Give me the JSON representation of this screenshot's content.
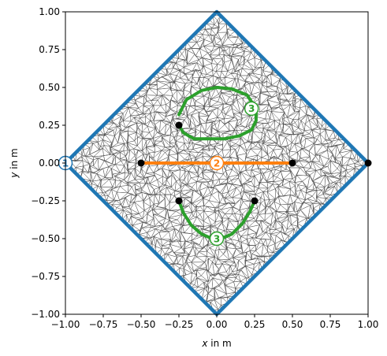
{
  "chart_data": {
    "type": "scatter",
    "title": "",
    "xlabel": "x in m",
    "ylabel": "y in m",
    "xlabel_parts": [
      "x",
      " in m"
    ],
    "ylabel_parts": [
      "y",
      " in m"
    ],
    "xlim": [
      -1.0,
      1.0
    ],
    "ylim": [
      -1.0,
      1.0
    ],
    "grid": false,
    "x_ticks": [
      -1.0,
      -0.75,
      -0.5,
      -0.25,
      0.0,
      0.25,
      0.5,
      0.75,
      1.0
    ],
    "y_ticks": [
      -1.0,
      -0.75,
      -0.5,
      -0.25,
      0.0,
      0.25,
      0.5,
      0.75,
      1.0
    ],
    "x_tick_labels": [
      "−1.00",
      "−0.75",
      "−0.50",
      "−0.25",
      "0.00",
      "0.25",
      "0.50",
      "0.75",
      "1.00"
    ],
    "y_tick_labels": [
      "−1.00",
      "−0.75",
      "−0.50",
      "−0.25",
      "0.00",
      "0.25",
      "0.50",
      "0.75",
      "1.00"
    ],
    "colors": {
      "boundary_1": "#1f77b4",
      "boundary_2": "#ff7f0e",
      "boundary_3": "#2ca02c",
      "mesh": "#555555",
      "points": "#000000"
    },
    "series": [
      {
        "name": "1",
        "label": "1",
        "label_at": [
          -1.0,
          0.0
        ],
        "color": "#1f77b4",
        "x": [
          0.0,
          1.0,
          0.0,
          -1.0,
          0.0
        ],
        "y": [
          1.0,
          0.0,
          -1.0,
          0.0,
          1.0
        ]
      },
      {
        "name": "2",
        "label": "2",
        "label_at": [
          0.0,
          0.0
        ],
        "color": "#ff7f0e",
        "x": [
          -0.5,
          0.5
        ],
        "y": [
          0.0,
          0.0
        ]
      },
      {
        "name": "3",
        "label": "3",
        "label_at": [
          0.23,
          0.36
        ],
        "color": "#2ca02c",
        "x": [
          -0.25,
          -0.22,
          -0.15,
          -0.05,
          0.05,
          0.15,
          0.23,
          0.26,
          0.26,
          0.2,
          0.1,
          0.0,
          -0.1,
          -0.2,
          -0.25
        ],
        "y": [
          0.25,
          0.2,
          0.16,
          0.16,
          0.16,
          0.18,
          0.22,
          0.28,
          0.36,
          0.45,
          0.49,
          0.5,
          0.48,
          0.42,
          0.32
        ]
      },
      {
        "name": "3",
        "label": "3",
        "label_at": [
          0.0,
          -0.5
        ],
        "color": "#2ca02c",
        "x": [
          -0.25,
          -0.22,
          -0.17,
          -0.1,
          -0.03,
          0.03,
          0.1,
          0.17,
          0.22,
          0.25
        ],
        "y": [
          -0.25,
          -0.33,
          -0.41,
          -0.47,
          -0.5,
          -0.5,
          -0.47,
          -0.4,
          -0.32,
          -0.25
        ]
      }
    ],
    "points": {
      "x": [
        -1.0,
        1.0,
        -0.5,
        0.5,
        -0.25,
        -0.25,
        0.25
      ],
      "y": [
        0.0,
        0.0,
        0.0,
        0.0,
        0.25,
        -0.25,
        -0.25
      ]
    }
  }
}
